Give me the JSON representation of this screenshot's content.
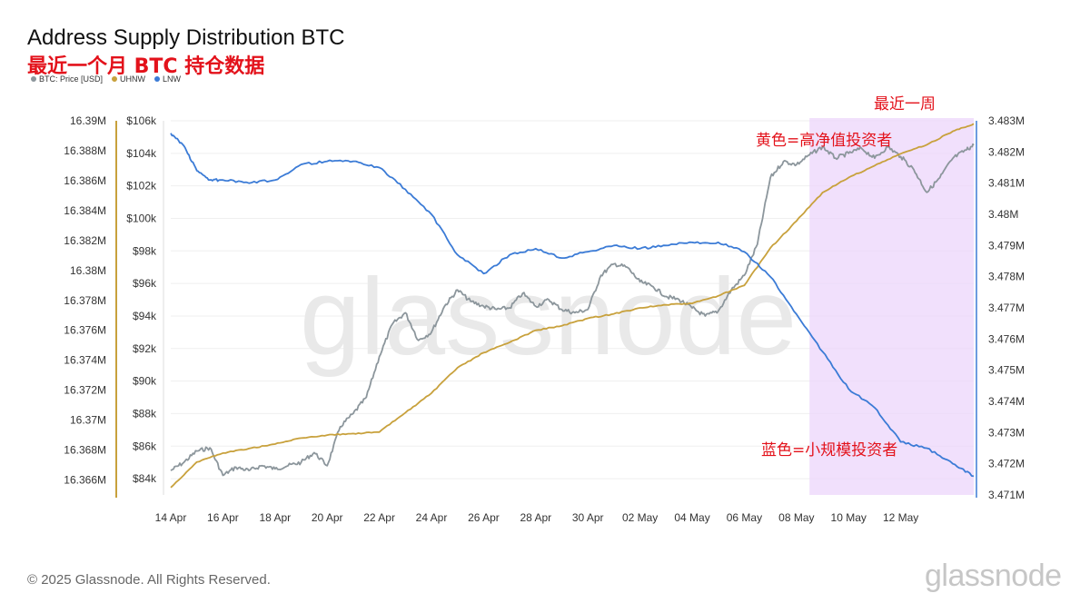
{
  "header": {
    "title": "Address Supply Distribution BTC",
    "subtitle": "最近一个月 BTC 持仓数据"
  },
  "legend": [
    {
      "label": "BTC: Price [USD]",
      "color": "#8c969c"
    },
    {
      "label": "UHNW",
      "color": "#c8a13c"
    },
    {
      "label": "LNW",
      "color": "#3b7bd6"
    }
  ],
  "annotations": {
    "week_label": "最近一周",
    "yellow_note": "黄色=高净值投资者",
    "blue_note": "蓝色=小规模投资者"
  },
  "watermark": "glassnode",
  "footer": {
    "copyright": "© 2025 Glassnode. All Rights Reserved.",
    "brand": "glassnode"
  },
  "colors": {
    "price": "#8c969c",
    "uhnw": "#c8a13c",
    "lnw": "#3b7bd6",
    "highlight": "#ecd6fb",
    "annotation": "#e3121b"
  },
  "chart_data": {
    "type": "line",
    "x_tick_labels": [
      "14 Apr",
      "16 Apr",
      "18 Apr",
      "20 Apr",
      "22 Apr",
      "24 Apr",
      "26 Apr",
      "28 Apr",
      "30 Apr",
      "02 May",
      "04 May",
      "06 May",
      "08 May",
      "10 May",
      "12 May"
    ],
    "x_range_days": [
      0,
      30.8
    ],
    "highlight_range_days": [
      24.5,
      30.8
    ],
    "axes": {
      "uhnw_axis": {
        "ticks": [
          "16.39M",
          "16.388M",
          "16.386M",
          "16.384M",
          "16.382M",
          "16.38M",
          "16.378M",
          "16.376M",
          "16.374M",
          "16.372M",
          "16.37M",
          "16.368M",
          "16.366M"
        ],
        "range": [
          16.365,
          16.39
        ]
      },
      "price_axis": {
        "ticks": [
          "$106k",
          "$104k",
          "$102k",
          "$100k",
          "$98k",
          "$96k",
          "$94k",
          "$92k",
          "$90k",
          "$88k",
          "$86k",
          "$84k"
        ],
        "range": [
          83000,
          106000
        ]
      },
      "lnw_axis": {
        "ticks": [
          "3.483M",
          "3.482M",
          "3.481M",
          "3.48M",
          "3.479M",
          "3.478M",
          "3.477M",
          "3.476M",
          "3.475M",
          "3.474M",
          "3.473M",
          "3.472M",
          "3.471M"
        ],
        "range": [
          3.471,
          3.483
        ]
      }
    },
    "series": [
      {
        "name": "BTC: Price [USD]",
        "axis": "price_axis",
        "x": [
          0,
          0.5,
          1,
          1.5,
          2,
          2.5,
          3,
          3.5,
          4,
          4.5,
          5,
          5.5,
          6,
          6.5,
          7,
          7.5,
          8,
          8.5,
          9,
          9.5,
          10,
          10.5,
          11,
          11.5,
          12,
          12.5,
          13,
          13.5,
          14,
          14.5,
          15,
          15.5,
          16,
          16.5,
          17,
          17.5,
          18,
          18.5,
          19,
          19.5,
          20,
          20.5,
          21,
          21.5,
          22,
          22.5,
          23,
          23.5,
          24,
          24.5,
          25,
          25.5,
          26,
          26.5,
          27,
          27.5,
          28,
          28.5,
          29,
          29.5,
          30,
          30.5,
          30.8
        ],
        "values": [
          84500,
          85000,
          85700,
          85900,
          84200,
          84700,
          84500,
          84800,
          84600,
          84800,
          85000,
          85600,
          84800,
          87200,
          88000,
          89000,
          91500,
          93500,
          94200,
          92500,
          93000,
          94600,
          95600,
          94900,
          94600,
          94400,
          94500,
          95400,
          94600,
          95000,
          94400,
          94200,
          94400,
          96500,
          97200,
          97000,
          96100,
          95800,
          95200,
          95000,
          94500,
          94000,
          94300,
          95600,
          96500,
          98400,
          102500,
          103500,
          103300,
          103900,
          104400,
          103700,
          104000,
          104300,
          103700,
          104400,
          103800,
          103000,
          101600,
          102500,
          103700,
          104200,
          104500
        ]
      },
      {
        "name": "UHNW",
        "axis": "uhnw_axis",
        "x": [
          0,
          1,
          2,
          3,
          4,
          5,
          6,
          7,
          8,
          9,
          10,
          11,
          12,
          13,
          14,
          15,
          16,
          17,
          18,
          19,
          20,
          21,
          22,
          23,
          24,
          25,
          26,
          27,
          28,
          29,
          30,
          30.8
        ],
        "values": [
          16.3655,
          16.3672,
          16.3678,
          16.3681,
          16.3684,
          16.3688,
          16.369,
          16.3691,
          16.3692,
          16.3705,
          16.3718,
          16.3735,
          16.3745,
          16.3752,
          16.376,
          16.3763,
          16.3768,
          16.3771,
          16.3775,
          16.3777,
          16.3778,
          16.3783,
          16.379,
          16.3815,
          16.3833,
          16.3852,
          16.3862,
          16.387,
          16.3878,
          16.3884,
          16.3893,
          16.3898
        ]
      },
      {
        "name": "LNW",
        "axis": "lnw_axis",
        "x": [
          0,
          0.5,
          1,
          1.5,
          2,
          3,
          4,
          5,
          6,
          7,
          8,
          9,
          10,
          11,
          12,
          13,
          14,
          15,
          16,
          17,
          18,
          19,
          20,
          21,
          22,
          23,
          24,
          25,
          26,
          27,
          28,
          29,
          30,
          30.8
        ],
        "values": [
          3.4826,
          3.4822,
          3.4814,
          3.4811,
          3.4811,
          3.481,
          3.4811,
          3.4816,
          3.4817,
          3.4817,
          3.4815,
          3.4808,
          3.48,
          3.4787,
          3.4781,
          3.4787,
          3.4789,
          3.4786,
          3.4788,
          3.479,
          3.4789,
          3.479,
          3.4791,
          3.4791,
          3.4788,
          3.478,
          3.4768,
          3.4756,
          3.4744,
          3.4738,
          3.4727,
          3.4725,
          3.472,
          3.4716
        ]
      }
    ]
  }
}
